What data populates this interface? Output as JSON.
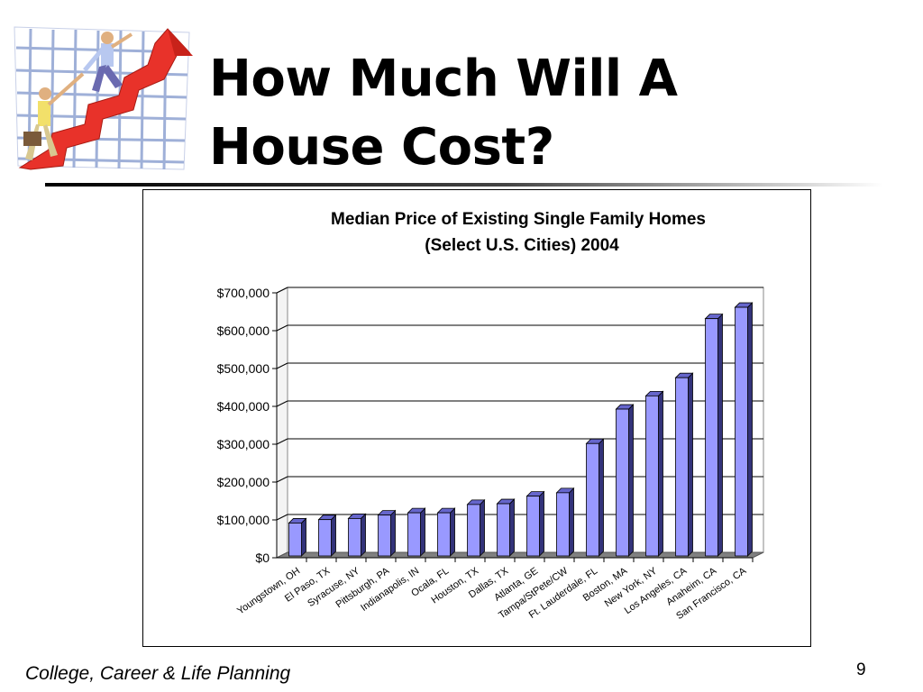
{
  "slide": {
    "title_line1": "How Much Will A",
    "title_line2": "House Cost?",
    "footer": "College, Career & Life Planning",
    "page_number": "9"
  },
  "colors": {
    "bar_front": "#9999ff",
    "bar_side": "#33337a",
    "bar_top": "#6666cc",
    "floor": "#808080",
    "wall": "#ffffff",
    "clipart_arrow": "#e8322a",
    "clipart_grid": "#9fb0d8"
  },
  "clipart": {
    "icon": "businessmen-climbing-arrow-chart-icon"
  },
  "chart_data": {
    "type": "bar",
    "title": "Median Price of Existing Single Family Homes",
    "subtitle": "(Select U.S. Cities) 2004",
    "categories": [
      "Youngstown, OH",
      "El Paso, TX",
      "Syracuse, NY",
      "Pittsburgh, PA",
      "Indianapolis, IN",
      "Ocala, FL",
      "Houston, TX",
      "Dallas, TX",
      "Atlanta, GE",
      "Tampa/StPete/CW",
      "Ft. Lauderdale, FL",
      "Boston, MA",
      "New York, NY",
      "Los Angeles, CA",
      "Anaheim, CA",
      "San Francisco, CA"
    ],
    "values": [
      87000,
      96000,
      99000,
      108000,
      114000,
      114000,
      136000,
      138000,
      158000,
      167000,
      297000,
      388000,
      423000,
      471000,
      627000,
      657000
    ],
    "ylim": [
      0,
      700000
    ],
    "yticks": [
      0,
      100000,
      200000,
      300000,
      400000,
      500000,
      600000,
      700000
    ],
    "ytick_labels": [
      "$0",
      "$100,000",
      "$200,000",
      "$300,000",
      "$400,000",
      "$500,000",
      "$600,000",
      "$700,000"
    ],
    "grid": true,
    "legend": "none"
  }
}
